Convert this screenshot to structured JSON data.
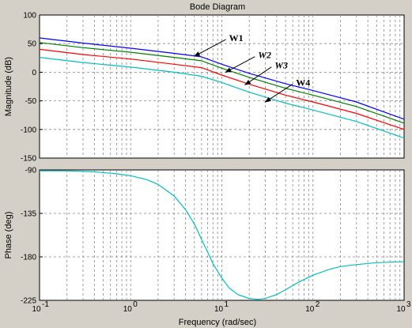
{
  "chart_data": {
    "type": "line",
    "title": "Bode Diagram",
    "xlabel": "Frequency  (rad/sec)",
    "xscale": "log",
    "xlim": [
      0.1,
      1000
    ],
    "xtick_labels": [
      "10^-1",
      "10^0",
      "10^1",
      "10^2",
      "10^3"
    ],
    "grid": true,
    "panels": [
      {
        "ylabel": "Magnitude (dB)",
        "ylim": [
          -150,
          100
        ],
        "yticks": [
          -150,
          -100,
          -50,
          0,
          50,
          100
        ],
        "series": [
          {
            "name": "W1",
            "color": "#0000ff",
            "x": [
              0.1,
              0.3,
              1,
              3,
              6,
              10,
              20,
              50,
              100,
              300,
              1000
            ],
            "y": [
              60,
              51,
              42,
              33,
              27,
              14,
              -2,
              -20,
              -32,
              -52,
              -82
            ]
          },
          {
            "name": "W2",
            "color": "#008000",
            "x": [
              0.1,
              0.3,
              1,
              3,
              6,
              10,
              20,
              50,
              100,
              300,
              1000
            ],
            "y": [
              52,
              43,
              35,
              26,
              20,
              7,
              -9,
              -28,
              -40,
              -60,
              -89
            ]
          },
          {
            "name": "W3",
            "color": "#ff0000",
            "x": [
              0.1,
              0.3,
              1,
              3,
              6,
              10,
              20,
              50,
              100,
              300,
              1000
            ],
            "y": [
              40,
              31,
              23,
              14,
              8,
              -5,
              -21,
              -40,
              -52,
              -72,
              -100
            ]
          },
          {
            "name": "W4",
            "color": "#00c0c0",
            "x": [
              0.1,
              0.3,
              1,
              3,
              6,
              10,
              20,
              50,
              100,
              300,
              1000
            ],
            "y": [
              26,
              17,
              9,
              0,
              -7,
              -18,
              -35,
              -54,
              -66,
              -86,
              -115
            ]
          }
        ],
        "annotations": [
          {
            "text": "W1",
            "italic": false,
            "x": 12,
            "y": 60,
            "target_x": 5,
            "target_y": 28
          },
          {
            "text": "W2",
            "italic": true,
            "x": 25,
            "y": 30,
            "target_x": 11,
            "target_y": 0
          },
          {
            "text": "W3",
            "italic": true,
            "x": 38,
            "y": 12,
            "target_x": 18,
            "target_y": -22
          },
          {
            "text": "W4",
            "italic": false,
            "x": 65,
            "y": -18,
            "target_x": 30,
            "target_y": -52
          }
        ]
      },
      {
        "ylabel": "Phase (deg)",
        "ylim": [
          -225,
          -90
        ],
        "yticks": [
          -225,
          -180,
          -135,
          -90
        ],
        "series": [
          {
            "name": "phase",
            "color": "#00c0c0",
            "x": [
              0.1,
              0.2,
              0.4,
              0.7,
              1,
              1.5,
              2,
              3,
              4,
              5,
              6,
              7,
              8,
              10,
              12,
              15,
              20,
              25,
              30,
              40,
              50,
              70,
              100,
              150,
              200,
              300,
              500,
              1000
            ],
            "y": [
              -91,
              -91,
              -92,
              -94,
              -96,
              -100,
              -105,
              -117,
              -131,
              -146,
              -162,
              -175,
              -187,
              -202,
              -212,
              -219,
              -223,
              -224,
              -223,
              -219,
              -214,
              -206,
              -199,
              -193,
              -190,
              -188,
              -186,
              -185
            ]
          }
        ]
      }
    ]
  }
}
